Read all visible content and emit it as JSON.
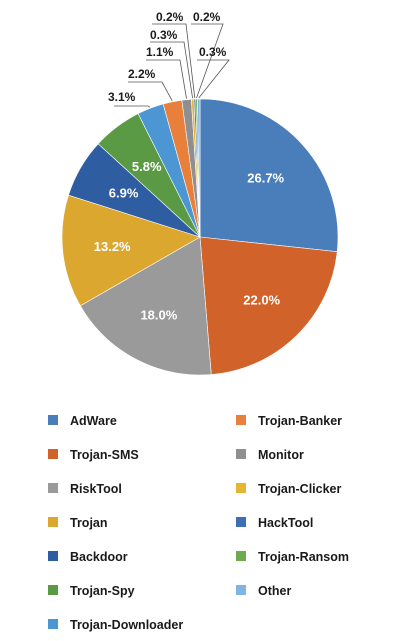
{
  "chart_data": {
    "type": "pie",
    "title": "",
    "categories": [
      "AdWare",
      "Trojan-SMS",
      "RiskTool",
      "Trojan",
      "Backdoor",
      "Trojan-Spy",
      "Trojan-Downloader",
      "Trojan-Banker",
      "Monitor",
      "Trojan-Clicker",
      "HackTool",
      "Trojan-Ransom",
      "Other"
    ],
    "values": [
      26.7,
      22.0,
      18.0,
      13.2,
      6.9,
      5.8,
      3.1,
      2.2,
      1.1,
      0.3,
      0.2,
      0.2,
      0.3
    ],
    "labels": [
      "26.7%",
      "22.0%",
      "18.0%",
      "13.2%",
      "6.9%",
      "5.8%",
      "3.1%",
      "2.2%",
      "1.1%",
      "0.3%",
      "0.2%",
      "0.2%",
      "0.3%"
    ],
    "colors": [
      "#4a7ebb",
      "#d1622a",
      "#9a9a9a",
      "#dba72e",
      "#2f5da2",
      "#5a9a45",
      "#4d96d4",
      "#e87f3a",
      "#8f8f8f",
      "#e5b431",
      "#3e6fb5",
      "#6fab4c",
      "#7fb5e2"
    ],
    "legend": {
      "placement": "bottom",
      "columns": 2,
      "items": [
        {
          "name": "AdWare",
          "color": "#4a7ebb"
        },
        {
          "name": "Trojan-Banker",
          "color": "#e87f3a"
        },
        {
          "name": "Trojan-SMS",
          "color": "#d1622a"
        },
        {
          "name": "Monitor",
          "color": "#8f8f8f"
        },
        {
          "name": "RiskTool",
          "color": "#9a9a9a"
        },
        {
          "name": "Trojan-Clicker",
          "color": "#e5b431"
        },
        {
          "name": "Trojan",
          "color": "#dba72e"
        },
        {
          "name": "HackTool",
          "color": "#3e6fb5"
        },
        {
          "name": "Backdoor",
          "color": "#2f5da2"
        },
        {
          "name": "Trojan-Ransom",
          "color": "#6fab4c"
        },
        {
          "name": "Trojan-Spy",
          "color": "#5a9a45"
        },
        {
          "name": "Other",
          "color": "#7fb5e2"
        },
        {
          "name": "Trojan-Downloader",
          "color": "#4d96d4"
        }
      ]
    }
  }
}
